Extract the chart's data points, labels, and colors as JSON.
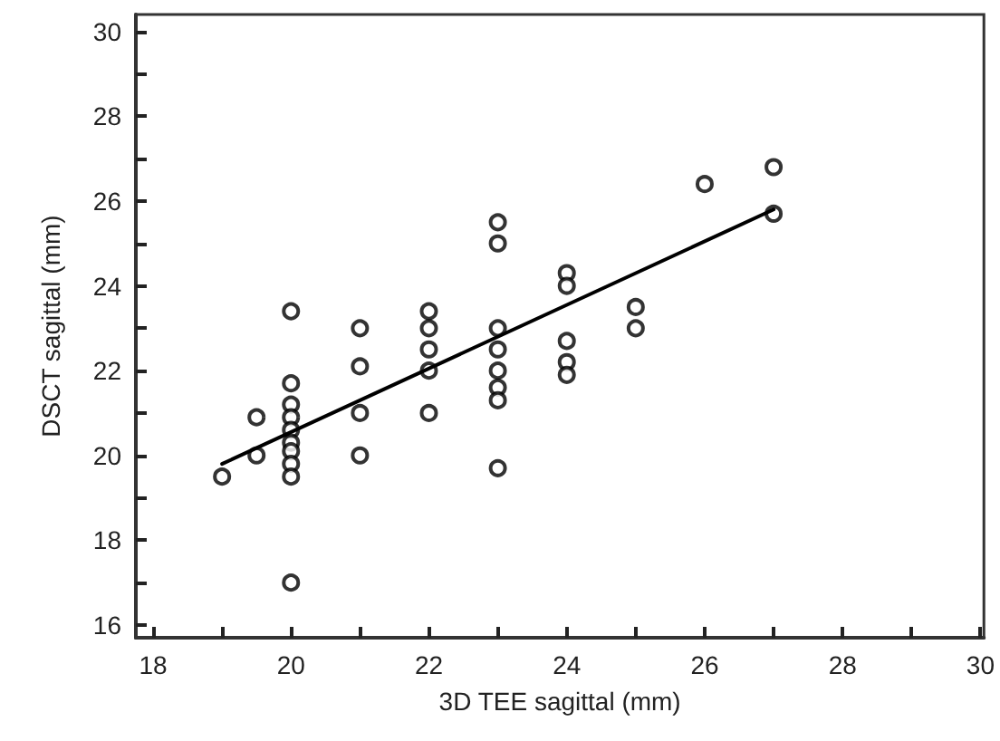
{
  "chart_data": {
    "type": "scatter",
    "xlabel": "3D TEE sagittal (mm)",
    "ylabel": "DSCT sagittal (mm)",
    "xlim": [
      17.75,
      30.05
    ],
    "ylim": [
      15.7,
      30.4
    ],
    "xticks": [
      18,
      {
        "value": 19,
        "label": null
      },
      20,
      {
        "value": 21,
        "label": null
      },
      22,
      {
        "value": 23,
        "label": null
      },
      24,
      {
        "value": 25,
        "label": null
      },
      26,
      {
        "value": 27,
        "label": null
      },
      28,
      {
        "value": 29,
        "label": null
      },
      30
    ],
    "yticks": [
      16,
      {
        "value": 17,
        "label": null
      },
      18,
      {
        "value": 19,
        "label": null
      },
      20,
      {
        "value": 21,
        "label": null
      },
      22,
      {
        "value": 23,
        "label": null
      },
      24,
      {
        "value": 25,
        "label": null
      },
      26,
      {
        "value": 27,
        "label": null
      },
      28,
      {
        "value": 29,
        "label": null
      },
      30
    ],
    "grid": false,
    "marker": "circle",
    "series": [
      {
        "color": "#000000",
        "x": [
          19,
          19.5,
          19.5,
          20,
          20,
          20,
          20,
          20,
          20,
          20,
          20,
          20,
          20,
          21,
          21,
          21,
          21,
          22,
          22,
          22,
          22,
          22,
          23,
          23,
          23,
          23,
          23,
          23,
          23,
          23,
          24,
          24,
          24,
          24,
          24,
          25,
          25,
          26,
          27,
          27
        ],
        "values": [
          19.5,
          20.0,
          20.9,
          23.4,
          21.7,
          21.2,
          20.9,
          20.6,
          20.3,
          20.1,
          19.8,
          19.5,
          17.0,
          23.0,
          22.1,
          21.0,
          20.0,
          23.4,
          23.0,
          22.5,
          22.0,
          21.0,
          25.5,
          25.0,
          23.0,
          22.5,
          22.0,
          21.6,
          21.3,
          19.7,
          24.3,
          24.0,
          22.7,
          22.2,
          21.9,
          23.5,
          23.0,
          26.4,
          26.8,
          25.7
        ]
      },
      {
        "type": "line",
        "color": "#000000",
        "marker": "none",
        "line_style": "solid",
        "x": [
          19,
          27
        ],
        "values": [
          19.8,
          25.8
        ]
      }
    ]
  }
}
